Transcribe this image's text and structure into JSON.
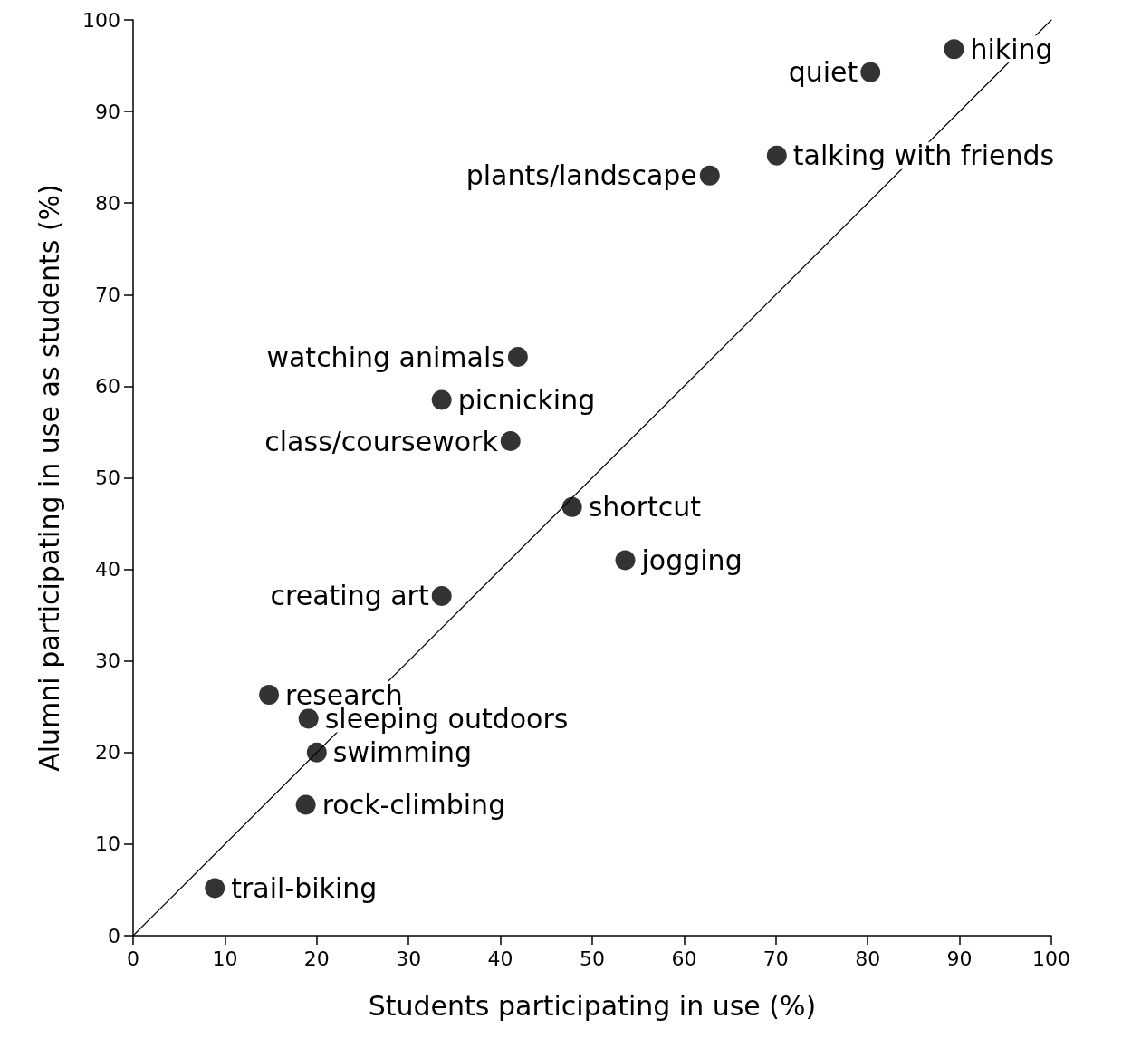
{
  "chart_data": {
    "type": "scatter",
    "xlabel": "Students participating in use (%)",
    "ylabel": "Alumni participating in use as students (%)",
    "xlim": [
      0,
      100
    ],
    "ylim": [
      0,
      100
    ],
    "xticks": [
      0,
      10,
      20,
      30,
      40,
      50,
      60,
      70,
      80,
      90,
      100
    ],
    "yticks": [
      0,
      10,
      20,
      30,
      40,
      50,
      60,
      70,
      80,
      90,
      100
    ],
    "grid": false,
    "series": [
      {
        "marker": "circle",
        "color": "#000000",
        "x": [
          89.4,
          80.3,
          70.1,
          62.8,
          41.9,
          33.6,
          41.1,
          47.8,
          53.6,
          33.6,
          14.8,
          19.1,
          20.0,
          18.8,
          8.9
        ],
        "values": [
          96.8,
          94.3,
          85.2,
          83.0,
          63.2,
          58.5,
          54.0,
          46.8,
          41.0,
          37.1,
          26.3,
          23.7,
          20.0,
          14.3,
          5.2
        ]
      },
      {
        "type": "line",
        "marker": "none",
        "line_style": "solid",
        "color": "#000000",
        "x": [
          0,
          100
        ],
        "values": [
          0,
          100
        ]
      }
    ],
    "annotations": [
      {
        "text": "hiking",
        "x": 89.4,
        "y": 96.8
      },
      {
        "text": "quiet",
        "x": 80.3,
        "y": 94.3
      },
      {
        "text": "talking with friends",
        "x": 70.1,
        "y": 85.2
      },
      {
        "text": "plants/landscape",
        "x": 62.8,
        "y": 83.0
      },
      {
        "text": "watching animals",
        "x": 41.9,
        "y": 63.2
      },
      {
        "text": "picnicking",
        "x": 33.6,
        "y": 58.5
      },
      {
        "text": "class/coursework",
        "x": 41.1,
        "y": 54.0
      },
      {
        "text": "shortcut",
        "x": 47.8,
        "y": 46.8
      },
      {
        "text": "jogging",
        "x": 53.6,
        "y": 41.0
      },
      {
        "text": "creating art",
        "x": 33.6,
        "y": 37.1
      },
      {
        "text": "research",
        "x": 14.8,
        "y": 26.3
      },
      {
        "text": "sleeping outdoors",
        "x": 19.1,
        "y": 23.7
      },
      {
        "text": "swimming",
        "x": 20.0,
        "y": 20.0
      },
      {
        "text": "rock-climbing",
        "x": 18.8,
        "y": 14.3
      },
      {
        "text": "trail-biking",
        "x": 8.9,
        "y": 5.2
      }
    ]
  }
}
